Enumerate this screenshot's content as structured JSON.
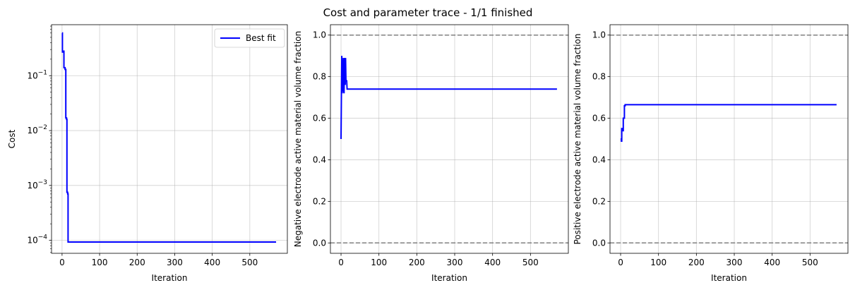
{
  "chart_data": {
    "title": "Cost and parameter trace - 1/1 finished",
    "line_color": "#0000ff",
    "grid": true,
    "panels": [
      {
        "type": "line",
        "yscale": "log",
        "xlabel": "Iteration",
        "ylabel": "Cost",
        "xlim": [
          -28,
          600
        ],
        "ylim": [
          5.8e-05,
          0.85
        ],
        "xticks": [
          0,
          100,
          200,
          300,
          400,
          500
        ],
        "yticks": [
          0.0001,
          0.001,
          0.01,
          0.1
        ],
        "ytick_labels": [
          {
            "base": "10",
            "exp": "−4"
          },
          {
            "base": "10",
            "exp": "−3"
          },
          {
            "base": "10",
            "exp": "−2"
          },
          {
            "base": "10",
            "exp": "−1"
          }
        ],
        "legend": {
          "position": "top-right",
          "entries": [
            "Best fit"
          ]
        },
        "series": [
          {
            "name": "Best fit",
            "x": [
              0,
              1,
              1,
              4,
              4,
              5,
              5,
              8,
              8,
              10,
              10,
              12,
              12,
              13,
              13,
              15,
              15,
              16,
              16,
              570
            ],
            "y": [
              0.6,
              0.6,
              0.27,
              0.27,
              0.28,
              0.28,
              0.14,
              0.14,
              0.13,
              0.13,
              0.017,
              0.017,
              0.016,
              0.016,
              0.00075,
              0.00075,
              0.0007,
              0.0007,
              9.3e-05,
              9.3e-05
            ]
          }
        ]
      },
      {
        "type": "line",
        "xlabel": "Iteration",
        "ylabel": "Negative electrode active material volume fraction",
        "xlim": [
          -28,
          600
        ],
        "ylim": [
          -0.05,
          1.05
        ],
        "xticks": [
          0,
          100,
          200,
          300,
          400,
          500
        ],
        "yticks": [
          0.0,
          0.2,
          0.4,
          0.6,
          0.8,
          1.0
        ],
        "ytick_labels": [
          "0.0",
          "0.2",
          "0.4",
          "0.6",
          "0.8",
          "1.0"
        ],
        "hlines": [
          0,
          1
        ],
        "series": [
          {
            "x": [
              0,
              1,
              2,
              3,
              4,
              5,
              6,
              7,
              8,
              9,
              10,
              11,
              12,
              13,
              14,
              15,
              16,
              17,
              18,
              20,
              570
            ],
            "y": [
              0.5,
              0.72,
              0.9,
              0.72,
              0.88,
              0.73,
              0.89,
              0.73,
              0.72,
              0.89,
              0.88,
              0.76,
              0.89,
              0.78,
              0.78,
              0.78,
              0.74,
              0.74,
              0.74,
              0.74,
              0.74
            ]
          }
        ]
      },
      {
        "type": "line",
        "xlabel": "Iteration",
        "ylabel": "Positive electrode active material volume fraction",
        "xlim": [
          -28,
          600
        ],
        "ylim": [
          -0.05,
          1.05
        ],
        "xticks": [
          0,
          100,
          200,
          300,
          400,
          500
        ],
        "yticks": [
          0.0,
          0.2,
          0.4,
          0.6,
          0.8,
          1.0
        ],
        "ytick_labels": [
          "0.0",
          "0.2",
          "0.4",
          "0.6",
          "0.8",
          "1.0"
        ],
        "hlines": [
          0,
          1
        ],
        "series": [
          {
            "x": [
              0,
              2,
              2,
              3,
              3,
              5,
              5,
              7,
              7,
              8,
              8,
              10,
              10,
              12,
              12,
              570
            ],
            "y": [
              0.5,
              0.5,
              0.49,
              0.49,
              0.55,
              0.55,
              0.54,
              0.54,
              0.6,
              0.6,
              0.6,
              0.6,
              0.66,
              0.66,
              0.665,
              0.665
            ]
          }
        ]
      }
    ]
  }
}
